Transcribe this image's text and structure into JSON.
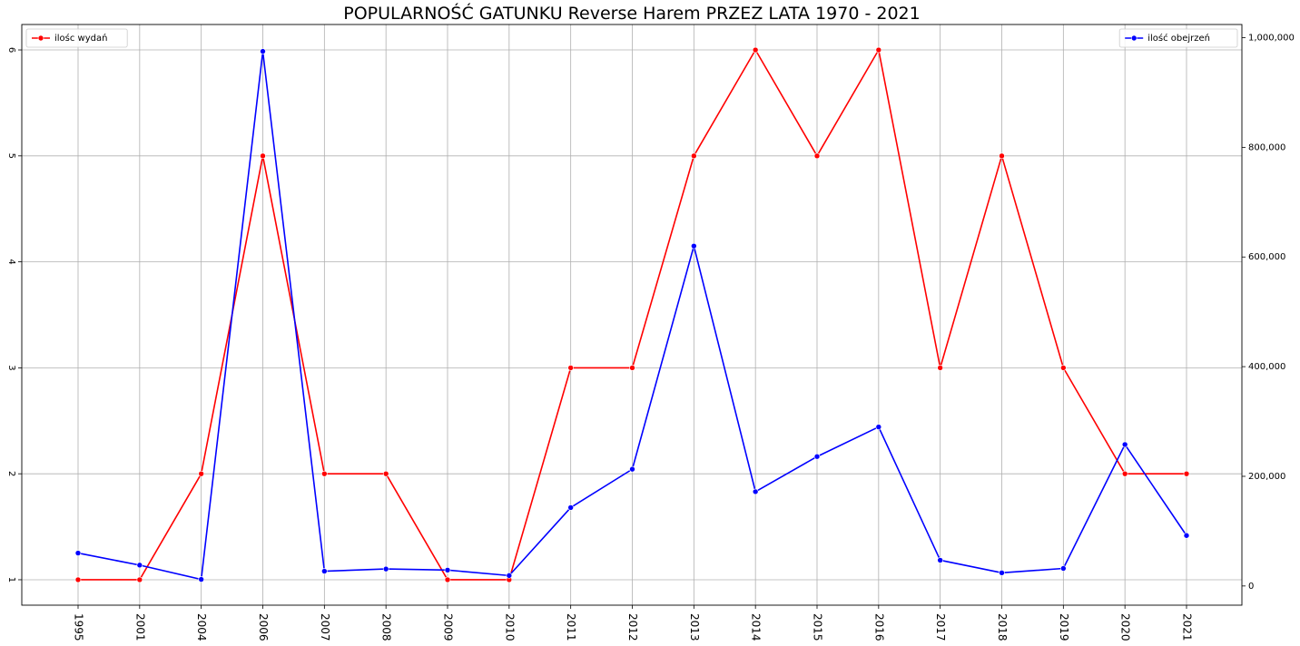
{
  "chart_data": {
    "type": "line",
    "title": "POPULARNOŚĆ GATUNKU Reverse Harem PRZEZ LATA 1970 - 2021",
    "xlabel": "",
    "categories": [
      "1995",
      "2001",
      "2004",
      "2006",
      "2007",
      "2008",
      "2009",
      "2010",
      "2011",
      "2012",
      "2013",
      "2014",
      "2015",
      "2016",
      "2017",
      "2018",
      "2019",
      "2020",
      "2021"
    ],
    "grid": true,
    "series": [
      {
        "name": "ilośc wydań",
        "axis": "left",
        "color": "#ff0000",
        "values": [
          1,
          1,
          2,
          5,
          2,
          2,
          1,
          1,
          3,
          3,
          5,
          6,
          5,
          6,
          3,
          5,
          3,
          2,
          2
        ]
      },
      {
        "name": "ilość obejrzeń",
        "axis": "right",
        "color": "#0000ff",
        "values": [
          60000,
          38000,
          12000,
          975000,
          27000,
          31000,
          29000,
          19000,
          143000,
          213000,
          620000,
          172000,
          236000,
          290000,
          47000,
          24000,
          32000,
          258000,
          92000
        ]
      }
    ],
    "left_axis": {
      "ylim": [
        0.76,
        6.24
      ],
      "ticks": [
        1,
        2,
        3,
        4,
        5,
        6
      ]
    },
    "right_axis": {
      "ylim": [
        -35000,
        1024000
      ],
      "ticks": [
        0,
        200000,
        400000,
        600000,
        800000,
        1000000
      ],
      "tick_labels": [
        "0",
        "200,000",
        "400,000",
        "600,000",
        "800,000",
        "1,000,000"
      ]
    },
    "legends": [
      {
        "placement": "upper-left",
        "label": "ilośc wydań",
        "color": "#ff0000"
      },
      {
        "placement": "upper-right",
        "label": "ilość obejrzeń",
        "color": "#0000ff"
      }
    ]
  }
}
